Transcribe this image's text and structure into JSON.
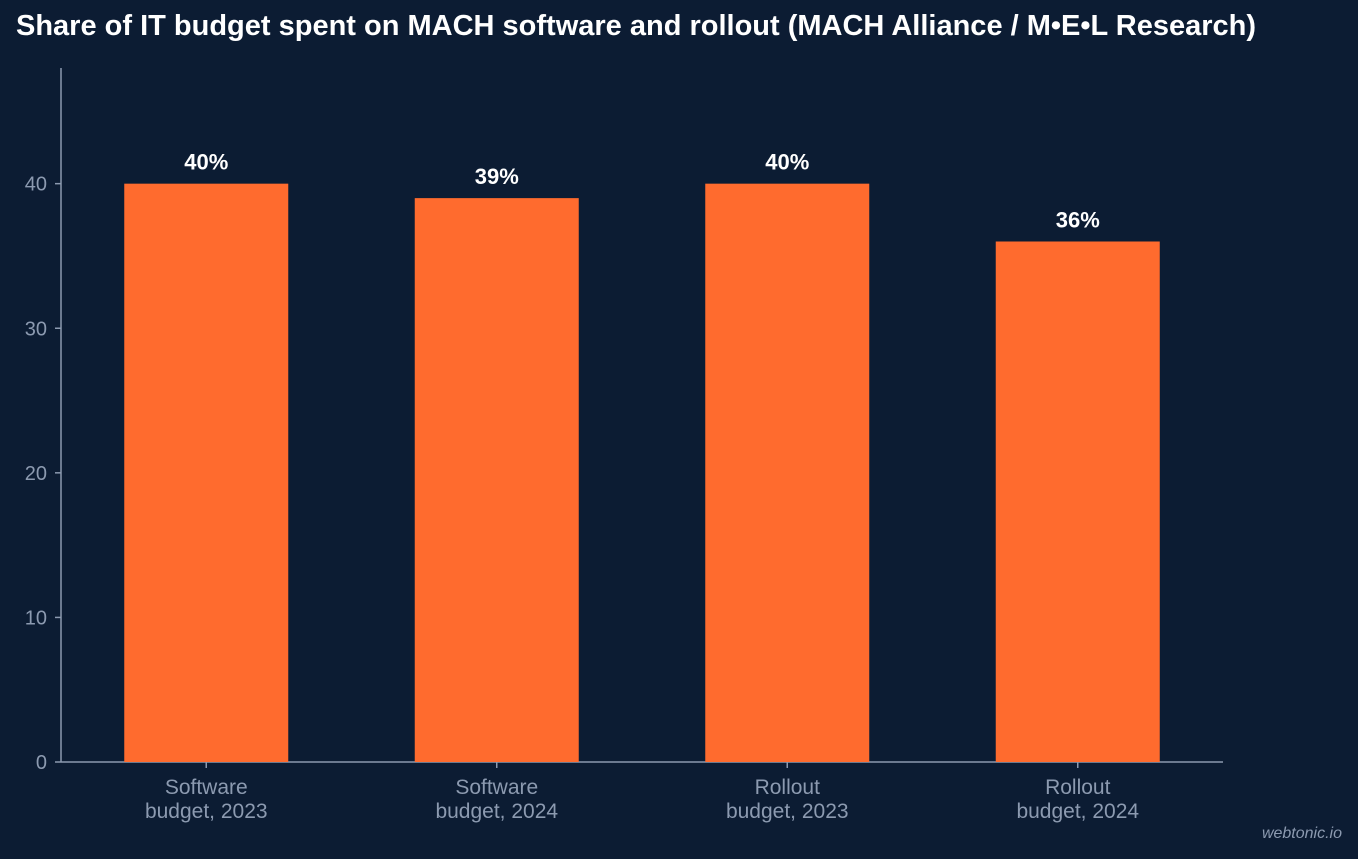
{
  "chart_data": {
    "type": "bar",
    "title": "Share of IT budget spent on MACH software and rollout (MACH Alliance / M•E•L Research)",
    "categories": [
      [
        "Software",
        "budget, 2023"
      ],
      [
        "Software",
        "budget, 2024"
      ],
      [
        "Rollout",
        "budget, 2023"
      ],
      [
        "Rollout",
        "budget, 2024"
      ]
    ],
    "values": [
      40,
      39,
      40,
      36
    ],
    "data_labels": [
      "40%",
      "39%",
      "40%",
      "36%"
    ],
    "xlabel": "",
    "ylabel": "",
    "ylim": [
      0,
      48
    ],
    "yticks": [
      0,
      10,
      20,
      30,
      40
    ],
    "grid": false,
    "bar_color": "#ff6b2e",
    "axis_color": "#8c9ab0",
    "background": "#0c1c33"
  },
  "watermark": "webtonic.io"
}
